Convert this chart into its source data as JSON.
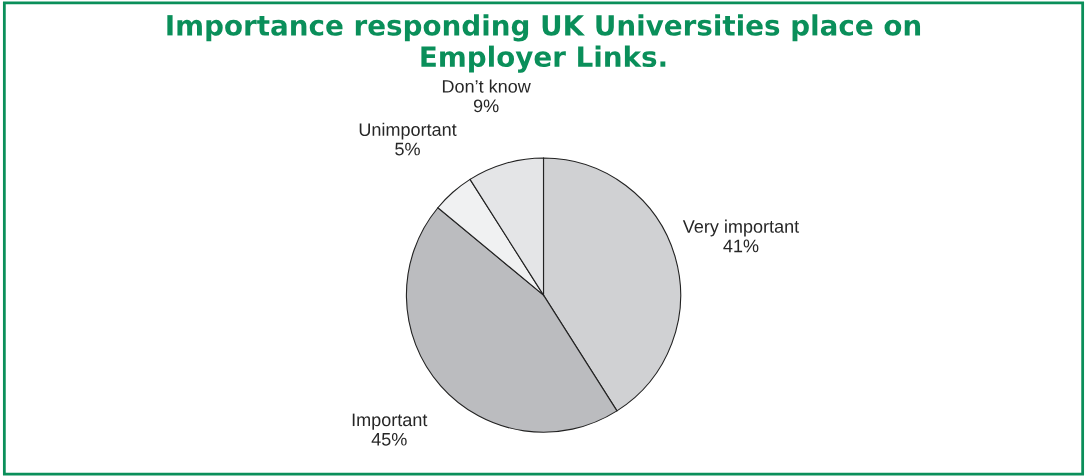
{
  "chart_data": {
    "type": "pie",
    "title": "Importance responding UK Universities place on\nEmployer Links.",
    "categories": [
      "Very important",
      "Important",
      "Unimportant",
      "Don’t know"
    ],
    "values": [
      41,
      45,
      5,
      9
    ],
    "value_labels": [
      "41%",
      "45%",
      "5%",
      "9%"
    ],
    "colors": [
      "#d0d1d3",
      "#bbbcbf",
      "#f0f1f2",
      "#e4e5e7"
    ],
    "legend": false
  }
}
